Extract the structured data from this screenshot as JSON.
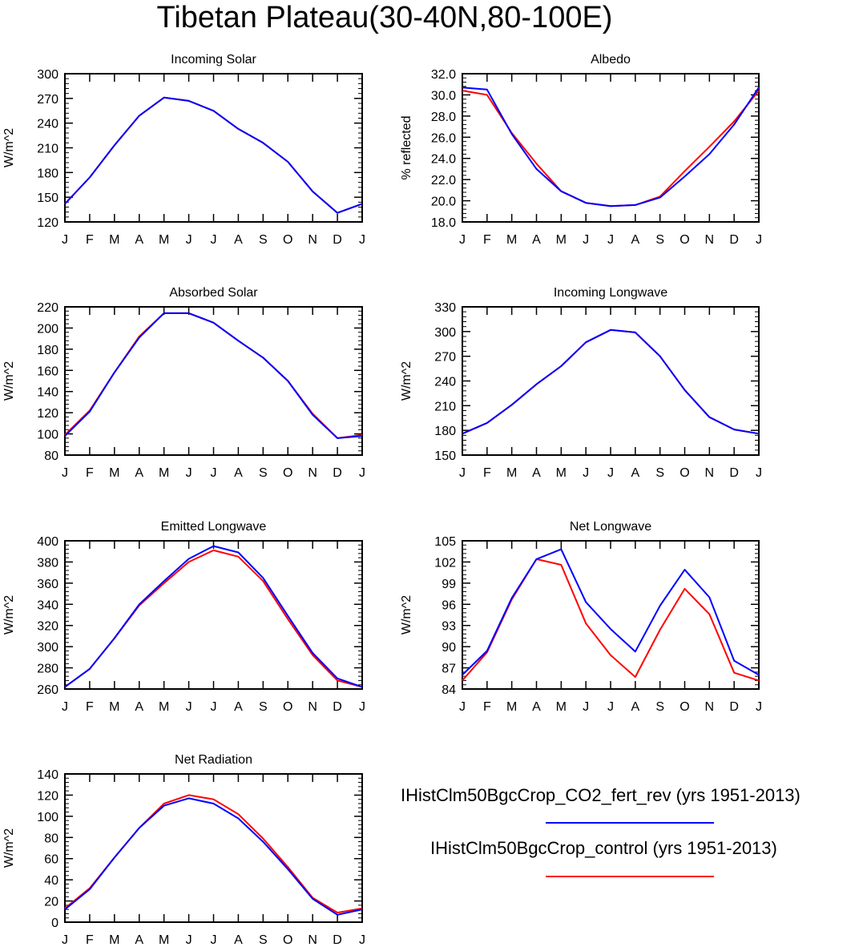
{
  "title": "Tibetan Plateau(30-40N,80-100E)",
  "colors": {
    "blue": "#0000ff",
    "red": "#ff0000"
  },
  "legend": [
    {
      "label": "IHistClm50BgcCrop_CO2_fert_rev (yrs 1951-2013)",
      "color": "#0000ff"
    },
    {
      "label": "IHistClm50BgcCrop_control (yrs 1951-2013)",
      "color": "#ff0000"
    }
  ],
  "chart_data": [
    {
      "type": "line",
      "title": "Incoming Solar",
      "ylabel": "W/m^2",
      "categories": [
        "J",
        "F",
        "M",
        "A",
        "M",
        "J",
        "J",
        "A",
        "S",
        "O",
        "N",
        "D",
        "J"
      ],
      "ylim": [
        120,
        300
      ],
      "yticks": [
        "120",
        "150",
        "180",
        "210",
        "240",
        "270",
        "300"
      ],
      "series": [
        {
          "color": "#ff0000",
          "values": [
            142,
            174,
            213,
            249,
            271,
            267,
            255,
            233,
            216,
            193,
            157,
            131,
            142
          ]
        },
        {
          "color": "#0000ff",
          "values": [
            142,
            174,
            213,
            249,
            271,
            267,
            255,
            233,
            216,
            193,
            157,
            131,
            142
          ]
        }
      ]
    },
    {
      "type": "line",
      "title": "Albedo",
      "ylabel": "% reflected",
      "categories": [
        "J",
        "F",
        "M",
        "A",
        "M",
        "J",
        "J",
        "A",
        "S",
        "O",
        "N",
        "D",
        "J"
      ],
      "ylim": [
        18,
        32
      ],
      "yticks": [
        "18.0",
        "20.0",
        "22.0",
        "24.0",
        "26.0",
        "28.0",
        "30.0",
        "32.0"
      ],
      "series": [
        {
          "color": "#ff0000",
          "values": [
            30.4,
            30.0,
            26.4,
            23.5,
            20.9,
            19.8,
            19.5,
            19.6,
            20.4,
            22.8,
            25.1,
            27.5,
            30.4
          ]
        },
        {
          "color": "#0000ff",
          "values": [
            30.7,
            30.5,
            26.3,
            23.0,
            20.9,
            19.8,
            19.5,
            19.6,
            20.3,
            22.3,
            24.4,
            27.2,
            30.7
          ]
        }
      ]
    },
    {
      "type": "line",
      "title": "Absorbed Solar",
      "ylabel": "W/m^2",
      "categories": [
        "J",
        "F",
        "M",
        "A",
        "M",
        "J",
        "J",
        "A",
        "S",
        "O",
        "N",
        "D",
        "J"
      ],
      "ylim": [
        80,
        220
      ],
      "yticks": [
        "80",
        "100",
        "120",
        "140",
        "160",
        "180",
        "200",
        "220"
      ],
      "series": [
        {
          "color": "#ff0000",
          "values": [
            99,
            122,
            158,
            192,
            214,
            214,
            205,
            188,
            172,
            150,
            119,
            96,
            99
          ]
        },
        {
          "color": "#0000ff",
          "values": [
            98,
            121,
            158,
            191,
            214,
            214,
            205,
            188,
            172,
            150,
            118,
            96,
            98
          ]
        }
      ]
    },
    {
      "type": "line",
      "title": "Incoming Longwave",
      "ylabel": "W/m^2",
      "categories": [
        "J",
        "F",
        "M",
        "A",
        "M",
        "J",
        "J",
        "A",
        "S",
        "O",
        "N",
        "D",
        "J"
      ],
      "ylim": [
        150,
        330
      ],
      "yticks": [
        "150",
        "180",
        "210",
        "240",
        "270",
        "300",
        "330"
      ],
      "series": [
        {
          "color": "#ff0000",
          "values": [
            176,
            189,
            211,
            236,
            258,
            287,
            302,
            299,
            270,
            229,
            196,
            181,
            176
          ]
        },
        {
          "color": "#0000ff",
          "values": [
            176,
            189,
            211,
            236,
            258,
            287,
            302,
            299,
            270,
            229,
            196,
            181,
            176
          ]
        }
      ]
    },
    {
      "type": "line",
      "title": "Emitted Longwave",
      "ylabel": "W/m^2",
      "categories": [
        "J",
        "F",
        "M",
        "A",
        "M",
        "J",
        "J",
        "A",
        "S",
        "O",
        "N",
        "D",
        "J"
      ],
      "ylim": [
        260,
        400
      ],
      "yticks": [
        "260",
        "280",
        "300",
        "320",
        "340",
        "360",
        "380",
        "400"
      ],
      "series": [
        {
          "color": "#ff0000",
          "values": [
            262,
            279,
            308,
            339,
            360,
            380,
            391,
            385,
            362,
            326,
            292,
            268,
            262
          ]
        },
        {
          "color": "#0000ff",
          "values": [
            262,
            279,
            308,
            340,
            362,
            383,
            395,
            389,
            365,
            329,
            294,
            270,
            262
          ]
        }
      ]
    },
    {
      "type": "line",
      "title": "Net Longwave",
      "ylabel": "W/m^2",
      "categories": [
        "J",
        "F",
        "M",
        "A",
        "M",
        "J",
        "J",
        "A",
        "S",
        "O",
        "N",
        "D",
        "J"
      ],
      "ylim": [
        84,
        105
      ],
      "yticks": [
        "84",
        "87",
        "90",
        "93",
        "96",
        "99",
        "102",
        "105"
      ],
      "series": [
        {
          "color": "#ff0000",
          "values": [
            85.2,
            89.2,
            96.7,
            102.4,
            101.6,
            93.3,
            88.8,
            85.7,
            92.4,
            98.2,
            94.6,
            86.3,
            85.2
          ]
        },
        {
          "color": "#0000ff",
          "values": [
            86.0,
            89.4,
            96.9,
            102.4,
            103.8,
            96.3,
            92.5,
            89.3,
            95.8,
            100.9,
            97.0,
            88.0,
            86.0
          ]
        }
      ]
    },
    {
      "type": "line",
      "title": "Net Radiation",
      "ylabel": "W/m^2",
      "categories": [
        "J",
        "F",
        "M",
        "A",
        "M",
        "J",
        "J",
        "A",
        "S",
        "O",
        "N",
        "D",
        "J"
      ],
      "ylim": [
        0,
        140
      ],
      "yticks": [
        "0",
        "20",
        "40",
        "60",
        "80",
        "100",
        "120",
        "140"
      ],
      "series": [
        {
          "color": "#ff0000",
          "values": [
            13,
            32,
            61,
            89,
            112,
            120,
            116,
            102,
            79,
            52,
            23,
            9,
            13
          ]
        },
        {
          "color": "#0000ff",
          "values": [
            12,
            31,
            61,
            89,
            110,
            117,
            112,
            98,
            76,
            50,
            22,
            7,
            12
          ]
        }
      ]
    }
  ]
}
